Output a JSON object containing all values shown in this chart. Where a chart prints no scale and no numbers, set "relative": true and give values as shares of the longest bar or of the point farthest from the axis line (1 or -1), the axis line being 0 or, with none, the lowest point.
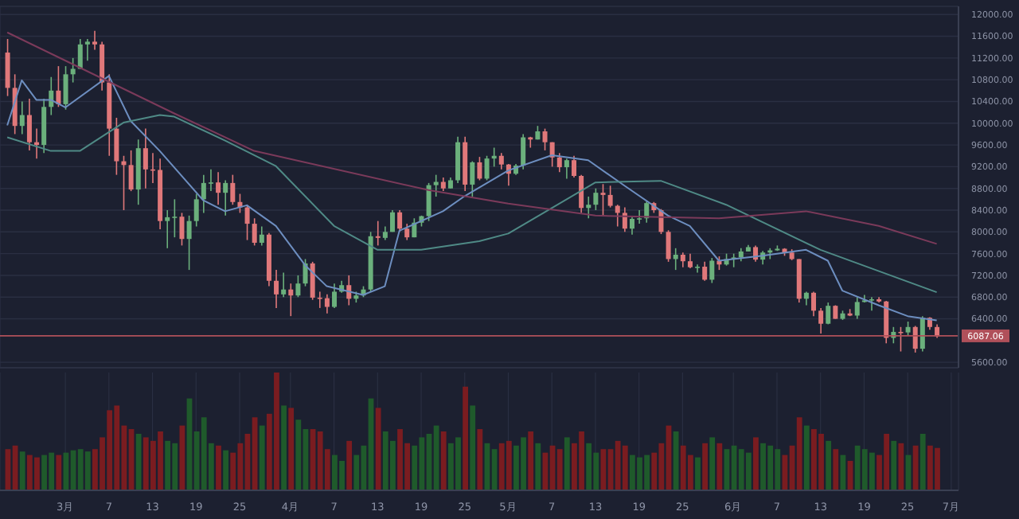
{
  "chart_data": [
    {
      "type": "candlestick",
      "x": [
        "--02-21",
        "--02-22",
        "--02-23",
        "--02-24",
        "--02-25",
        "--02-26",
        "--02-27",
        "--02-28",
        "--03-01",
        "--03-02",
        "--03-03",
        "--03-04",
        "--03-05",
        "--03-06",
        "--03-07",
        "--03-08",
        "--03-09",
        "--03-10",
        "--03-11",
        "--03-12",
        "--03-13",
        "--03-14",
        "--03-15",
        "--03-16",
        "--03-17",
        "--03-18",
        "--03-19",
        "--03-20",
        "--03-21",
        "--03-22",
        "--03-23",
        "--03-24",
        "--03-25",
        "--03-26",
        "--03-27",
        "--03-28",
        "--03-29",
        "--03-30",
        "--03-31",
        "--04-01",
        "--04-02",
        "--04-03",
        "--04-04",
        "--04-05",
        "--04-06",
        "--04-07",
        "--04-08",
        "--04-09",
        "--04-10",
        "--04-11",
        "--04-12",
        "--04-13",
        "--04-14",
        "--04-15",
        "--04-16",
        "--04-17",
        "--04-18",
        "--04-19",
        "--04-20",
        "--04-21",
        "--04-22",
        "--04-23",
        "--04-24",
        "--04-25",
        "--04-26",
        "--04-27",
        "--04-28",
        "--04-29",
        "--04-30",
        "--05-01",
        "--05-02",
        "--05-03",
        "--05-04",
        "--05-05",
        "--05-06",
        "--05-07",
        "--05-08",
        "--05-09",
        "--05-10",
        "--05-11",
        "--05-12",
        "--05-13",
        "--05-14",
        "--05-15",
        "--05-16",
        "--05-17",
        "--05-18",
        "--05-19",
        "--05-20",
        "--05-21",
        "--05-22",
        "--05-23",
        "--05-24",
        "--05-25",
        "--05-26",
        "--05-27",
        "--05-28",
        "--05-29",
        "--05-30",
        "--05-31",
        "--06-01",
        "--06-02",
        "--06-03",
        "--06-04",
        "--06-05",
        "--06-06",
        "--06-07",
        "--06-08",
        "--06-09",
        "--06-10",
        "--06-11",
        "--06-12",
        "--06-13",
        "--06-14",
        "--06-15",
        "--06-16",
        "--06-17",
        "--06-18",
        "--06-19",
        "--06-20",
        "--06-21",
        "--06-22",
        "--06-23",
        "--06-24",
        "--06-25",
        "--06-26",
        "--06-27",
        "--06-28",
        "--06-29"
      ],
      "ohlc": [
        [
          11300,
          11550,
          10500,
          10650
        ],
        [
          10650,
          10900,
          9800,
          9950
        ],
        [
          9950,
          10400,
          9800,
          10150
        ],
        [
          10150,
          10450,
          9500,
          9650
        ],
        [
          9650,
          9900,
          9350,
          9600
        ],
        [
          9600,
          10450,
          9450,
          10300
        ],
        [
          10300,
          10850,
          10150,
          10600
        ],
        [
          10600,
          11050,
          10300,
          10350
        ],
        [
          10350,
          11050,
          10250,
          10900
        ],
        [
          10900,
          11200,
          10750,
          11000
        ],
        [
          11000,
          11550,
          11000,
          11450
        ],
        [
          11450,
          11550,
          11150,
          11500
        ],
        [
          11500,
          11700,
          11350,
          11450
        ],
        [
          11450,
          11500,
          10600,
          10750
        ],
        [
          10750,
          10900,
          9400,
          9900
        ],
        [
          9900,
          10100,
          9050,
          9300
        ],
        [
          9300,
          9400,
          8400,
          9230
        ],
        [
          9230,
          9500,
          8750,
          8780
        ],
        [
          8780,
          9700,
          8500,
          9540
        ],
        [
          9540,
          9900,
          8800,
          9150
        ],
        [
          9150,
          9450,
          8900,
          9140
        ],
        [
          9140,
          9350,
          8050,
          8200
        ],
        [
          8200,
          8400,
          7700,
          8270
        ],
        [
          8270,
          8600,
          7900,
          8280
        ],
        [
          8280,
          8350,
          7750,
          7870
        ],
        [
          7870,
          8300,
          7300,
          8200
        ],
        [
          8200,
          8700,
          8100,
          8600
        ],
        [
          8600,
          9050,
          8350,
          8900
        ],
        [
          8900,
          9150,
          8750,
          8910
        ],
        [
          8910,
          9100,
          8500,
          8720
        ],
        [
          8720,
          8950,
          8300,
          8900
        ],
        [
          8900,
          9050,
          8500,
          8550
        ],
        [
          8550,
          8700,
          8350,
          8450
        ],
        [
          8450,
          8500,
          7850,
          8150
        ],
        [
          8150,
          8250,
          7750,
          7800
        ],
        [
          7800,
          8100,
          7750,
          7950
        ],
        [
          7950,
          7980,
          7000,
          7100
        ],
        [
          7100,
          7300,
          6600,
          6850
        ],
        [
          6850,
          7250,
          6800,
          6940
        ],
        [
          6940,
          7050,
          6450,
          6830
        ],
        [
          6830,
          7200,
          6800,
          7050
        ],
        [
          7050,
          7500,
          7000,
          7420
        ],
        [
          7420,
          7450,
          6750,
          6790
        ],
        [
          6790,
          6900,
          6600,
          6780
        ],
        [
          6780,
          6850,
          6500,
          6620
        ],
        [
          6620,
          7050,
          6600,
          6900
        ],
        [
          6900,
          7100,
          6880,
          7020
        ],
        [
          7020,
          7200,
          6650,
          6770
        ],
        [
          6770,
          6900,
          6700,
          6830
        ],
        [
          6830,
          7000,
          6800,
          6940
        ],
        [
          6940,
          8000,
          6900,
          7920
        ],
        [
          7920,
          8200,
          7750,
          7890
        ],
        [
          7890,
          8100,
          7850,
          8000
        ],
        [
          8000,
          8400,
          8000,
          8360
        ],
        [
          8360,
          8400,
          8000,
          8060
        ],
        [
          8060,
          8150,
          7850,
          7900
        ],
        [
          7900,
          8250,
          7900,
          8170
        ],
        [
          8170,
          8300,
          8100,
          8290
        ],
        [
          8290,
          8900,
          8200,
          8860
        ],
        [
          8860,
          9050,
          8650,
          8920
        ],
        [
          8920,
          9000,
          8750,
          8800
        ],
        [
          8800,
          9000,
          8800,
          8950
        ],
        [
          8950,
          9750,
          8900,
          9650
        ],
        [
          9650,
          9750,
          8750,
          8870
        ],
        [
          8870,
          9300,
          8650,
          9280
        ],
        [
          9280,
          9380,
          8950,
          8980
        ],
        [
          8980,
          9400,
          8950,
          9350
        ],
        [
          9350,
          9550,
          9200,
          9400
        ],
        [
          9400,
          9450,
          9150,
          9240
        ],
        [
          9240,
          9250,
          8850,
          9070
        ],
        [
          9070,
          9250,
          9050,
          9220
        ],
        [
          9220,
          9800,
          9150,
          9740
        ],
        [
          9740,
          9750,
          9550,
          9700
        ],
        [
          9700,
          9950,
          9700,
          9850
        ],
        [
          9850,
          9900,
          9500,
          9650
        ],
        [
          9650,
          9650,
          9200,
          9370
        ],
        [
          9370,
          9450,
          9100,
          9190
        ],
        [
          9190,
          9350,
          8980,
          9320
        ],
        [
          9320,
          9400,
          9000,
          9030
        ],
        [
          9030,
          9050,
          8350,
          8440
        ],
        [
          8440,
          8650,
          8250,
          8500
        ],
        [
          8500,
          8800,
          8400,
          8720
        ],
        [
          8720,
          8880,
          8300,
          8680
        ],
        [
          8680,
          8850,
          8450,
          8480
        ],
        [
          8480,
          8500,
          8100,
          8350
        ],
        [
          8350,
          8450,
          8000,
          8060
        ],
        [
          8060,
          8270,
          7950,
          8240
        ],
        [
          8240,
          8400,
          8150,
          8250
        ],
        [
          8250,
          8560,
          8170,
          8530
        ],
        [
          8530,
          8550,
          8350,
          8400
        ],
        [
          8400,
          8420,
          7960,
          8000
        ],
        [
          8000,
          8030,
          7450,
          7500
        ],
        [
          7500,
          7700,
          7300,
          7580
        ],
        [
          7580,
          7620,
          7350,
          7460
        ],
        [
          7460,
          7600,
          7330,
          7350
        ],
        [
          7350,
          7400,
          7250,
          7360
        ],
        [
          7360,
          7450,
          7100,
          7120
        ],
        [
          7120,
          7520,
          7060,
          7470
        ],
        [
          7470,
          7550,
          7300,
          7400
        ],
        [
          7400,
          7600,
          7380,
          7500
        ],
        [
          7500,
          7600,
          7350,
          7530
        ],
        [
          7530,
          7700,
          7460,
          7640
        ],
        [
          7640,
          7760,
          7640,
          7720
        ],
        [
          7720,
          7750,
          7450,
          7490
        ],
        [
          7490,
          7650,
          7400,
          7620
        ],
        [
          7620,
          7700,
          7500,
          7660
        ],
        [
          7660,
          7750,
          7650,
          7690
        ],
        [
          7690,
          7700,
          7560,
          7620
        ],
        [
          7620,
          7680,
          7480,
          7500
        ],
        [
          7500,
          7500,
          6700,
          6770
        ],
        [
          6770,
          6900,
          6650,
          6880
        ],
        [
          6880,
          6900,
          6450,
          6550
        ],
        [
          6550,
          6600,
          6130,
          6310
        ],
        [
          6310,
          6700,
          6300,
          6640
        ],
        [
          6640,
          6650,
          6400,
          6400
        ],
        [
          6400,
          6550,
          6380,
          6500
        ],
        [
          6500,
          6580,
          6450,
          6460
        ],
        [
          6460,
          6800,
          6400,
          6710
        ],
        [
          6710,
          6840,
          6700,
          6740
        ],
        [
          6740,
          6800,
          6550,
          6760
        ],
        [
          6760,
          6800,
          6700,
          6720
        ],
        [
          6720,
          6730,
          5950,
          6050
        ],
        [
          6050,
          6250,
          5950,
          6160
        ],
        [
          6160,
          6250,
          5800,
          6150
        ],
        [
          6150,
          6350,
          6100,
          6250
        ],
        [
          6250,
          6270,
          5780,
          5850
        ],
        [
          5850,
          6450,
          5800,
          6420
        ],
        [
          6420,
          6430,
          6200,
          6250
        ],
        [
          6250,
          6300,
          6050,
          6080
        ]
      ],
      "colors": [
        "#e0787a",
        "#e0787a",
        "#6bb07c",
        "#e0787a",
        "#e0787a",
        "#6bb07c",
        "#6bb07c",
        "#e0787a",
        "#6bb07c",
        "#6bb07c",
        "#6bb07c",
        "#6bb07c",
        "#e0787a",
        "#e0787a",
        "#e0787a",
        "#e0787a",
        "#e0787a",
        "#e0787a",
        "#6bb07c",
        "#e0787a",
        "#e0787a",
        "#e0787a",
        "#6bb07c",
        "#6bb07c",
        "#e0787a",
        "#6bb07c",
        "#6bb07c",
        "#6bb07c",
        "#6bb07c",
        "#e0787a",
        "#6bb07c",
        "#e0787a",
        "#e0787a",
        "#e0787a",
        "#e0787a",
        "#6bb07c",
        "#e0787a",
        "#e0787a",
        "#6bb07c",
        "#e0787a",
        "#6bb07c",
        "#6bb07c",
        "#e0787a",
        "#e0787a",
        "#e0787a",
        "#6bb07c",
        "#6bb07c",
        "#e0787a",
        "#6bb07c",
        "#6bb07c",
        "#6bb07c",
        "#e0787a",
        "#6bb07c",
        "#6bb07c",
        "#e0787a",
        "#e0787a",
        "#6bb07c",
        "#6bb07c",
        "#6bb07c",
        "#6bb07c",
        "#e0787a",
        "#6bb07c",
        "#6bb07c",
        "#e0787a",
        "#6bb07c",
        "#e0787a",
        "#6bb07c",
        "#6bb07c",
        "#e0787a",
        "#e0787a",
        "#6bb07c",
        "#6bb07c",
        "#e0787a",
        "#6bb07c",
        "#e0787a",
        "#e0787a",
        "#e0787a",
        "#6bb07c",
        "#e0787a",
        "#e0787a",
        "#6bb07c",
        "#6bb07c",
        "#e0787a",
        "#e0787a",
        "#e0787a",
        "#e0787a",
        "#6bb07c",
        "#6bb07c",
        "#6bb07c",
        "#e0787a",
        "#e0787a",
        "#e0787a",
        "#6bb07c",
        "#e0787a",
        "#e0787a",
        "#6bb07c",
        "#e0787a",
        "#6bb07c",
        "#e0787a",
        "#6bb07c",
        "#6bb07c",
        "#6bb07c",
        "#6bb07c",
        "#e0787a",
        "#6bb07c",
        "#6bb07c",
        "#6bb07c",
        "#e0787a",
        "#e0787a",
        "#e0787a",
        "#6bb07c",
        "#e0787a",
        "#e0787a",
        "#6bb07c",
        "#e0787a",
        "#6bb07c",
        "#e0787a",
        "#6bb07c",
        "#6bb07c",
        "#6bb07c",
        "#e0787a",
        "#e0787a",
        "#6bb07c",
        "#e0787a",
        "#6bb07c",
        "#e0787a",
        "#6bb07c",
        "#e0787a",
        "#e0787a"
      ],
      "series": [
        {
          "type": "line",
          "color": "#6d8ec0",
          "x": [
            "--02-21",
            "--02-23",
            "--02-25",
            "--02-27",
            "--03-01",
            "--03-07",
            "--03-10",
            "--03-14",
            "--03-20",
            "--03-23",
            "--03-26",
            "--03-30",
            "--04-03",
            "--04-06",
            "--04-11",
            "--04-14",
            "--04-16",
            "--04-22",
            "--04-25",
            "--05-01",
            "--05-07",
            "--05-12",
            "--05-17",
            "--05-23",
            "--05-26",
            "--05-30",
            "--06-05",
            "--06-11",
            "--06-14",
            "--06-16",
            "--06-21",
            "--06-25",
            "--06-29"
          ],
          "values": [
            9960,
            10790,
            10430,
            10430,
            10290,
            10870,
            10040,
            9490,
            8580,
            8380,
            8490,
            8110,
            7390,
            7000,
            6840,
            7000,
            8020,
            8380,
            8660,
            9130,
            9410,
            9320,
            8850,
            8300,
            8110,
            7470,
            7560,
            7670,
            7470,
            6920,
            6650,
            6450,
            6370
          ]
        },
        {
          "type": "line",
          "color": "#4f8a86",
          "x": [
            "--02-21",
            "--02-27",
            "--03-03",
            "--03-09",
            "--03-14",
            "--03-16",
            "--03-23",
            "--03-30",
            "--04-07",
            "--04-13",
            "--04-19",
            "--04-27",
            "--05-01",
            "--05-13",
            "--05-22",
            "--05-31",
            "--06-13",
            "--06-29"
          ],
          "values": [
            9740,
            9490,
            9490,
            10010,
            10150,
            10120,
            9680,
            9210,
            8110,
            7670,
            7670,
            7830,
            7970,
            8910,
            8940,
            8500,
            7670,
            6890
          ]
        },
        {
          "type": "line",
          "color": "#7b3a5a",
          "x": [
            "--02-21",
            "--03-16",
            "--03-27",
            "--04-20",
            "--05-01",
            "--05-13",
            "--05-30",
            "--06-11",
            "--06-21",
            "--06-29"
          ],
          "values": [
            11670,
            10180,
            9490,
            8770,
            8520,
            8300,
            8250,
            8380,
            8110,
            7780
          ]
        }
      ],
      "xlim": [
        "--02-20",
        "--07-02"
      ],
      "xticks": [
        {
          "value": "--03-01",
          "label": null
        },
        {
          "value": "--03-07",
          "label": null
        },
        {
          "value": "--03-13",
          "label": null
        },
        {
          "value": "--03-19",
          "label": null
        },
        {
          "value": "--03-25",
          "label": null
        },
        {
          "value": "--04-01",
          "label": null
        },
        {
          "value": "--04-07",
          "label": null
        },
        {
          "value": "--04-13",
          "label": null
        },
        {
          "value": "--04-19",
          "label": null
        },
        {
          "value": "--04-25",
          "label": null
        },
        {
          "value": "--05-01",
          "label": null
        },
        {
          "value": "--05-07",
          "label": null
        },
        {
          "value": "--05-13",
          "label": null
        },
        {
          "value": "--05-19",
          "label": null
        },
        {
          "value": "--05-25",
          "label": null
        },
        {
          "value": "--06-01",
          "label": null
        },
        {
          "value": "--06-07",
          "label": null
        },
        {
          "value": "--06-13",
          "label": null
        },
        {
          "value": "--06-19",
          "label": null
        },
        {
          "value": "--06-25",
          "label": null
        },
        {
          "value": "--07-01",
          "label": null
        }
      ],
      "ylim": [
        5500,
        12150
      ],
      "yticks": [
        {
          "value": 5600,
          "label": "5600.00"
        },
        {
          "value": 6400,
          "label": "6400.00"
        },
        {
          "value": 6800,
          "label": "6800.00"
        },
        {
          "value": 7200,
          "label": "7200.00"
        },
        {
          "value": 7600,
          "label": "7600.00"
        },
        {
          "value": 8000,
          "label": "8000.00"
        },
        {
          "value": 8400,
          "label": "8400.00"
        },
        {
          "value": 8800,
          "label": "8800.00"
        },
        {
          "value": 9200,
          "label": "9200.00"
        },
        {
          "value": 9600,
          "label": "9600.00"
        },
        {
          "value": 10000,
          "label": "10000.00"
        },
        {
          "value": 10400,
          "label": "10400.00"
        },
        {
          "value": 10800,
          "label": "10800.00"
        },
        {
          "value": 11200,
          "label": "11200.00"
        },
        {
          "value": 11600,
          "label": "11600.00"
        },
        {
          "value": 12000,
          "label": "12000.00"
        }
      ],
      "grid": true,
      "tick_labels": "y",
      "ref_lines": [
        {
          "axis": "y",
          "value": 6087.06,
          "label": "6087.06",
          "color": "#b0505a"
        }
      ]
    },
    {
      "type": "bar",
      "relative": true,
      "grid": true,
      "tick_labels": "x",
      "x": [
        "--02-21",
        "--02-22",
        "--02-23",
        "--02-24",
        "--02-25",
        "--02-26",
        "--02-27",
        "--02-28",
        "--03-01",
        "--03-02",
        "--03-03",
        "--03-04",
        "--03-05",
        "--03-06",
        "--03-07",
        "--03-08",
        "--03-09",
        "--03-10",
        "--03-11",
        "--03-12",
        "--03-13",
        "--03-14",
        "--03-15",
        "--03-16",
        "--03-17",
        "--03-18",
        "--03-19",
        "--03-20",
        "--03-21",
        "--03-22",
        "--03-23",
        "--03-24",
        "--03-25",
        "--03-26",
        "--03-27",
        "--03-28",
        "--03-29",
        "--03-30",
        "--03-31",
        "--04-01",
        "--04-02",
        "--04-03",
        "--04-04",
        "--04-05",
        "--04-06",
        "--04-07",
        "--04-08",
        "--04-09",
        "--04-10",
        "--04-11",
        "--04-12",
        "--04-13",
        "--04-14",
        "--04-15",
        "--04-16",
        "--04-17",
        "--04-18",
        "--04-19",
        "--04-20",
        "--04-21",
        "--04-22",
        "--04-23",
        "--04-24",
        "--04-25",
        "--04-26",
        "--04-27",
        "--04-28",
        "--04-29",
        "--04-30",
        "--05-01",
        "--05-02",
        "--05-03",
        "--05-04",
        "--05-05",
        "--05-06",
        "--05-07",
        "--05-08",
        "--05-09",
        "--05-10",
        "--05-11",
        "--05-12",
        "--05-13",
        "--05-14",
        "--05-15",
        "--05-16",
        "--05-17",
        "--05-18",
        "--05-19",
        "--05-20",
        "--05-21",
        "--05-22",
        "--05-23",
        "--05-24",
        "--05-25",
        "--05-26",
        "--05-27",
        "--05-28",
        "--05-29",
        "--05-30",
        "--05-31",
        "--06-01",
        "--06-02",
        "--06-03",
        "--06-04",
        "--06-05",
        "--06-06",
        "--06-07",
        "--06-08",
        "--06-09",
        "--06-10",
        "--06-11",
        "--06-12",
        "--06-13",
        "--06-14",
        "--06-15",
        "--06-16",
        "--06-17",
        "--06-18",
        "--06-19",
        "--06-20",
        "--06-21",
        "--06-22",
        "--06-23",
        "--06-24",
        "--06-25",
        "--06-26",
        "--06-27",
        "--06-28",
        "--06-29"
      ],
      "values": [
        0.35,
        0.38,
        0.33,
        0.3,
        0.28,
        0.3,
        0.32,
        0.3,
        0.32,
        0.34,
        0.35,
        0.33,
        0.35,
        0.45,
        0.68,
        0.72,
        0.55,
        0.52,
        0.48,
        0.45,
        0.42,
        0.5,
        0.42,
        0.4,
        0.55,
        0.78,
        0.5,
        0.62,
        0.4,
        0.38,
        0.34,
        0.32,
        0.4,
        0.48,
        0.62,
        0.55,
        0.65,
        1.0,
        0.72,
        0.7,
        0.6,
        0.52,
        0.52,
        0.5,
        0.35,
        0.3,
        0.25,
        0.42,
        0.3,
        0.38,
        0.78,
        0.7,
        0.5,
        0.42,
        0.52,
        0.4,
        0.38,
        0.45,
        0.48,
        0.55,
        0.5,
        0.4,
        0.45,
        0.88,
        0.72,
        0.52,
        0.4,
        0.35,
        0.4,
        0.42,
        0.38,
        0.45,
        0.5,
        0.4,
        0.32,
        0.38,
        0.35,
        0.45,
        0.4,
        0.5,
        0.4,
        0.32,
        0.35,
        0.35,
        0.42,
        0.38,
        0.3,
        0.28,
        0.3,
        0.32,
        0.4,
        0.55,
        0.5,
        0.38,
        0.3,
        0.28,
        0.4,
        0.45,
        0.4,
        0.35,
        0.38,
        0.35,
        0.32,
        0.45,
        0.4,
        0.38,
        0.35,
        0.3,
        0.38,
        0.62,
        0.55,
        0.52,
        0.48,
        0.42,
        0.35,
        0.3,
        0.25,
        0.38,
        0.35,
        0.32,
        0.3,
        0.48,
        0.42,
        0.4,
        0.3,
        0.38,
        0.48,
        0.38,
        0.36
      ],
      "colors": [
        "#7a1c20",
        "#7a1c20",
        "#1f5a2b",
        "#7a1c20",
        "#7a1c20",
        "#1f5a2b",
        "#1f5a2b",
        "#7a1c20",
        "#1f5a2b",
        "#1f5a2b",
        "#1f5a2b",
        "#1f5a2b",
        "#7a1c20",
        "#7a1c20",
        "#7a1c20",
        "#7a1c20",
        "#7a1c20",
        "#7a1c20",
        "#1f5a2b",
        "#7a1c20",
        "#7a1c20",
        "#7a1c20",
        "#1f5a2b",
        "#1f5a2b",
        "#7a1c20",
        "#1f5a2b",
        "#1f5a2b",
        "#1f5a2b",
        "#1f5a2b",
        "#7a1c20",
        "#1f5a2b",
        "#7a1c20",
        "#7a1c20",
        "#7a1c20",
        "#7a1c20",
        "#1f5a2b",
        "#7a1c20",
        "#7a1c20",
        "#1f5a2b",
        "#7a1c20",
        "#1f5a2b",
        "#1f5a2b",
        "#7a1c20",
        "#7a1c20",
        "#7a1c20",
        "#1f5a2b",
        "#1f5a2b",
        "#7a1c20",
        "#1f5a2b",
        "#1f5a2b",
        "#1f5a2b",
        "#7a1c20",
        "#1f5a2b",
        "#1f5a2b",
        "#7a1c20",
        "#7a1c20",
        "#1f5a2b",
        "#1f5a2b",
        "#1f5a2b",
        "#1f5a2b",
        "#7a1c20",
        "#1f5a2b",
        "#1f5a2b",
        "#7a1c20",
        "#1f5a2b",
        "#7a1c20",
        "#1f5a2b",
        "#1f5a2b",
        "#7a1c20",
        "#7a1c20",
        "#1f5a2b",
        "#1f5a2b",
        "#7a1c20",
        "#1f5a2b",
        "#7a1c20",
        "#7a1c20",
        "#7a1c20",
        "#1f5a2b",
        "#7a1c20",
        "#7a1c20",
        "#1f5a2b",
        "#1f5a2b",
        "#7a1c20",
        "#7a1c20",
        "#7a1c20",
        "#7a1c20",
        "#1f5a2b",
        "#1f5a2b",
        "#1f5a2b",
        "#7a1c20",
        "#7a1c20",
        "#7a1c20",
        "#1f5a2b",
        "#7a1c20",
        "#7a1c20",
        "#1f5a2b",
        "#7a1c20",
        "#1f5a2b",
        "#7a1c20",
        "#1f5a2b",
        "#1f5a2b",
        "#1f5a2b",
        "#1f5a2b",
        "#7a1c20",
        "#1f5a2b",
        "#1f5a2b",
        "#1f5a2b",
        "#7a1c20",
        "#7a1c20",
        "#7a1c20",
        "#1f5a2b",
        "#7a1c20",
        "#7a1c20",
        "#1f5a2b",
        "#7a1c20",
        "#1f5a2b",
        "#7a1c20",
        "#1f5a2b",
        "#1f5a2b",
        "#1f5a2b",
        "#7a1c20",
        "#7a1c20",
        "#1f5a2b",
        "#7a1c20",
        "#1f5a2b",
        "#7a1c20",
        "#1f5a2b",
        "#7a1c20",
        "#7a1c20"
      ],
      "xlim": [
        "--02-20",
        "--07-02"
      ],
      "xticks": [
        {
          "value": "--03-01",
          "label": "3月"
        },
        {
          "value": "--03-07",
          "label": "7"
        },
        {
          "value": "--03-13",
          "label": "13"
        },
        {
          "value": "--03-19",
          "label": "19"
        },
        {
          "value": "--03-25",
          "label": "25"
        },
        {
          "value": "--04-01",
          "label": "4月"
        },
        {
          "value": "--04-07",
          "label": "7"
        },
        {
          "value": "--04-13",
          "label": "13"
        },
        {
          "value": "--04-19",
          "label": "19"
        },
        {
          "value": "--04-25",
          "label": "25"
        },
        {
          "value": "--05-01",
          "label": "5月"
        },
        {
          "value": "--05-07",
          "label": "7"
        },
        {
          "value": "--05-13",
          "label": "13"
        },
        {
          "value": "--05-19",
          "label": "19"
        },
        {
          "value": "--05-25",
          "label": "25"
        },
        {
          "value": "--06-01",
          "label": "6月"
        },
        {
          "value": "--06-07",
          "label": "7"
        },
        {
          "value": "--06-13",
          "label": "13"
        },
        {
          "value": "--06-19",
          "label": "19"
        },
        {
          "value": "--06-25",
          "label": "25"
        },
        {
          "value": "--07-01",
          "label": "7月"
        }
      ]
    }
  ]
}
